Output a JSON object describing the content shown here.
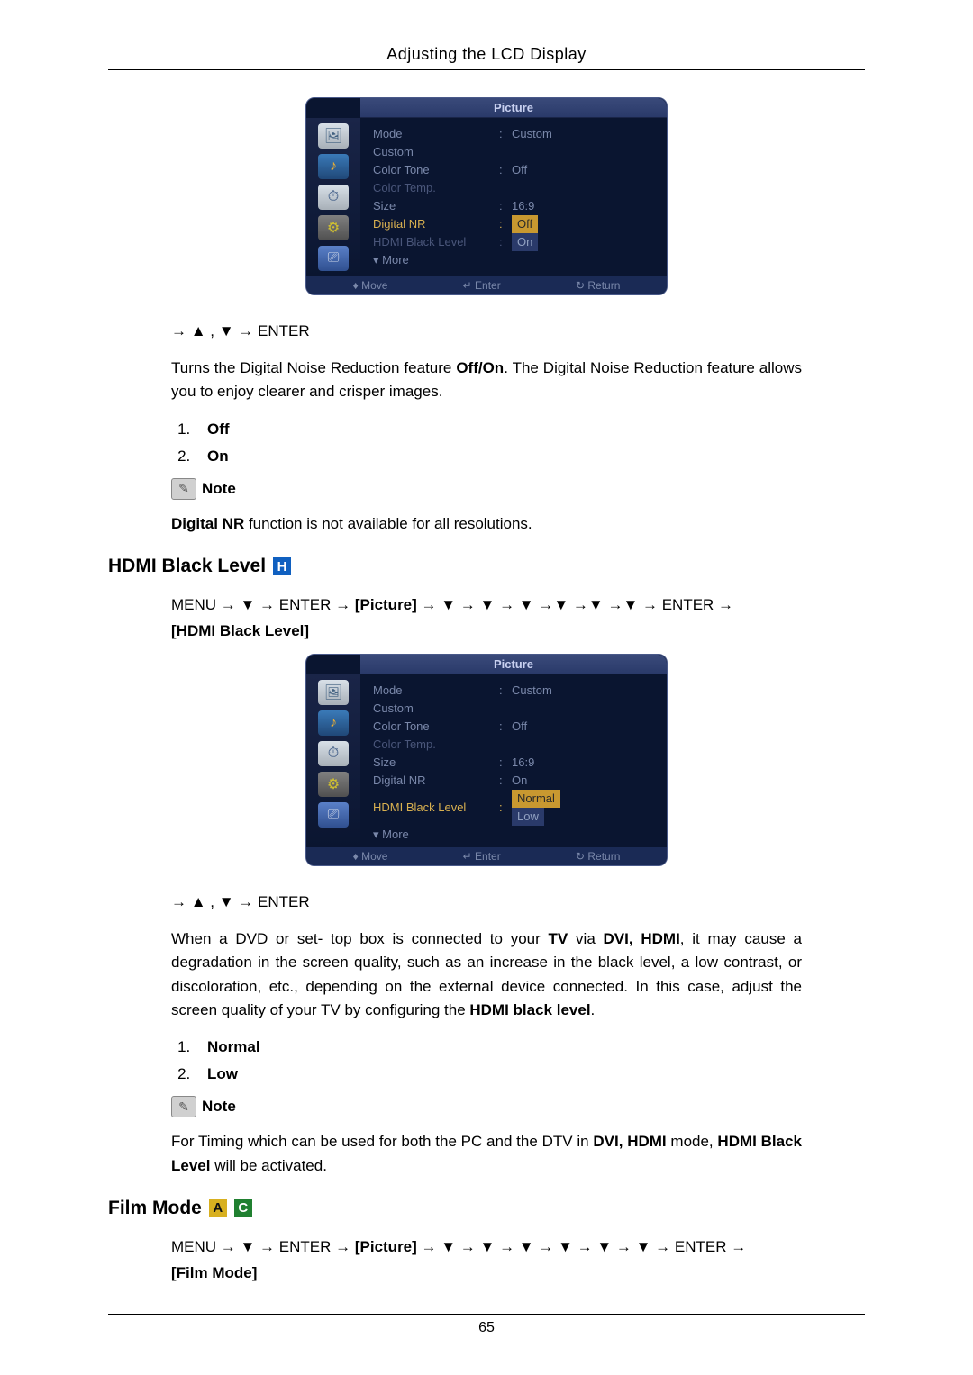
{
  "header": "Adjusting the LCD Display",
  "pageNumber": "65",
  "osd1": {
    "title": "Picture",
    "rows": [
      {
        "label": "Mode",
        "val": "Custom",
        "style": "norm"
      },
      {
        "label": "Custom",
        "val": "",
        "style": "norm"
      },
      {
        "label": "Color Tone",
        "val": "Off",
        "style": "norm"
      },
      {
        "label": "Color Temp.",
        "val": "",
        "style": "dim"
      },
      {
        "label": "Size",
        "val": "16:9",
        "style": "norm"
      },
      {
        "label": "Digital NR",
        "val_sel": "Off",
        "val_below": "On",
        "style": "hl"
      },
      {
        "label": "HDMI Black Level",
        "val": "",
        "style": "dim"
      },
      {
        "label": "▾ More",
        "val": "",
        "style": "norm"
      }
    ],
    "footer": {
      "move": "♦ Move",
      "enter": "↵ Enter",
      "ret": "↻ Return"
    }
  },
  "nav1": "→ ▲ , ▼ → ENTER",
  "dnrPara": "Turns the Digital Noise Reduction feature Off/On. The Digital Noise Reduction feature allows you to enjoy clearer and crisper images.",
  "opts1": [
    "Off",
    "On"
  ],
  "noteLabel": "Note",
  "note1": {
    "pre": "Digital NR",
    "post": " function is not available for all resolutions."
  },
  "sec1": {
    "title": "HDMI Black Level",
    "path": {
      "a": "MENU → ▼ → ENTER → ",
      "pic": "[Picture]",
      "b": " → ▼ → ▼ → ▼ →▼ →▼ →▼ → ENTER → ",
      "tgt": "[HDMI Black Level]"
    }
  },
  "osd2": {
    "title": "Picture",
    "rows": [
      {
        "label": "Mode",
        "val": "Custom",
        "style": "norm"
      },
      {
        "label": "Custom",
        "val": "",
        "style": "norm"
      },
      {
        "label": "Color Tone",
        "val": "Off",
        "style": "norm"
      },
      {
        "label": "Color Temp.",
        "val": "",
        "style": "dim"
      },
      {
        "label": "Size",
        "val": "16:9",
        "style": "norm"
      },
      {
        "label": "Digital NR",
        "val": "On",
        "style": "norm"
      },
      {
        "label": "HDMI Black Level",
        "val_sel": "Normal",
        "val_below": "Low",
        "style": "hl"
      },
      {
        "label": "▾ More",
        "val": "",
        "style": "norm"
      }
    ],
    "footer": {
      "move": "♦ Move",
      "enter": "↵ Enter",
      "ret": "↻ Return"
    }
  },
  "nav2": "→ ▲ , ▼ → ENTER",
  "hdmiPara": "When a DVD or set- top box is connected to your TV via DVI, HDMI, it may cause a degradation in the screen quality, such as an increase in the black level, a low contrast, or discoloration, etc., depending on the external device connected. In this case, adjust the screen quality of your TV by configuring the HDMI black level.",
  "hdmiParaBold": {
    "tv": "TV",
    "dvihdmi": "DVI, HDMI",
    "hbl": "HDMI black level"
  },
  "opts2": [
    "Normal",
    "Low"
  ],
  "note2": {
    "pre": "For Timing which can be used for both the PC and the DTV in ",
    "b1": "DVI, HDMI",
    "mid": " mode, ",
    "b2": "HDMI Black Level",
    "post": " will be activated."
  },
  "sec2": {
    "title": "Film Mode",
    "path": {
      "a": "MENU → ▼ → ENTER → ",
      "pic": "[Picture]",
      "b": " → ▼ → ▼ → ▼ → ▼ → ▼ → ▼ → ENTER → ",
      "tgt": "[Film Mode]"
    }
  },
  "icons": {
    "i1_bg": "linear-gradient(#d8e0e8,#a8b0b8)",
    "i2_bg": "linear-gradient(#3a7ab8,#204878)",
    "i3_bg": "linear-gradient(#d8e0e8,#a8b0b8)",
    "i4_bg": "linear-gradient(#808080,#505050)",
    "i5_bg": "linear-gradient(#5a80c8,#305090)"
  }
}
